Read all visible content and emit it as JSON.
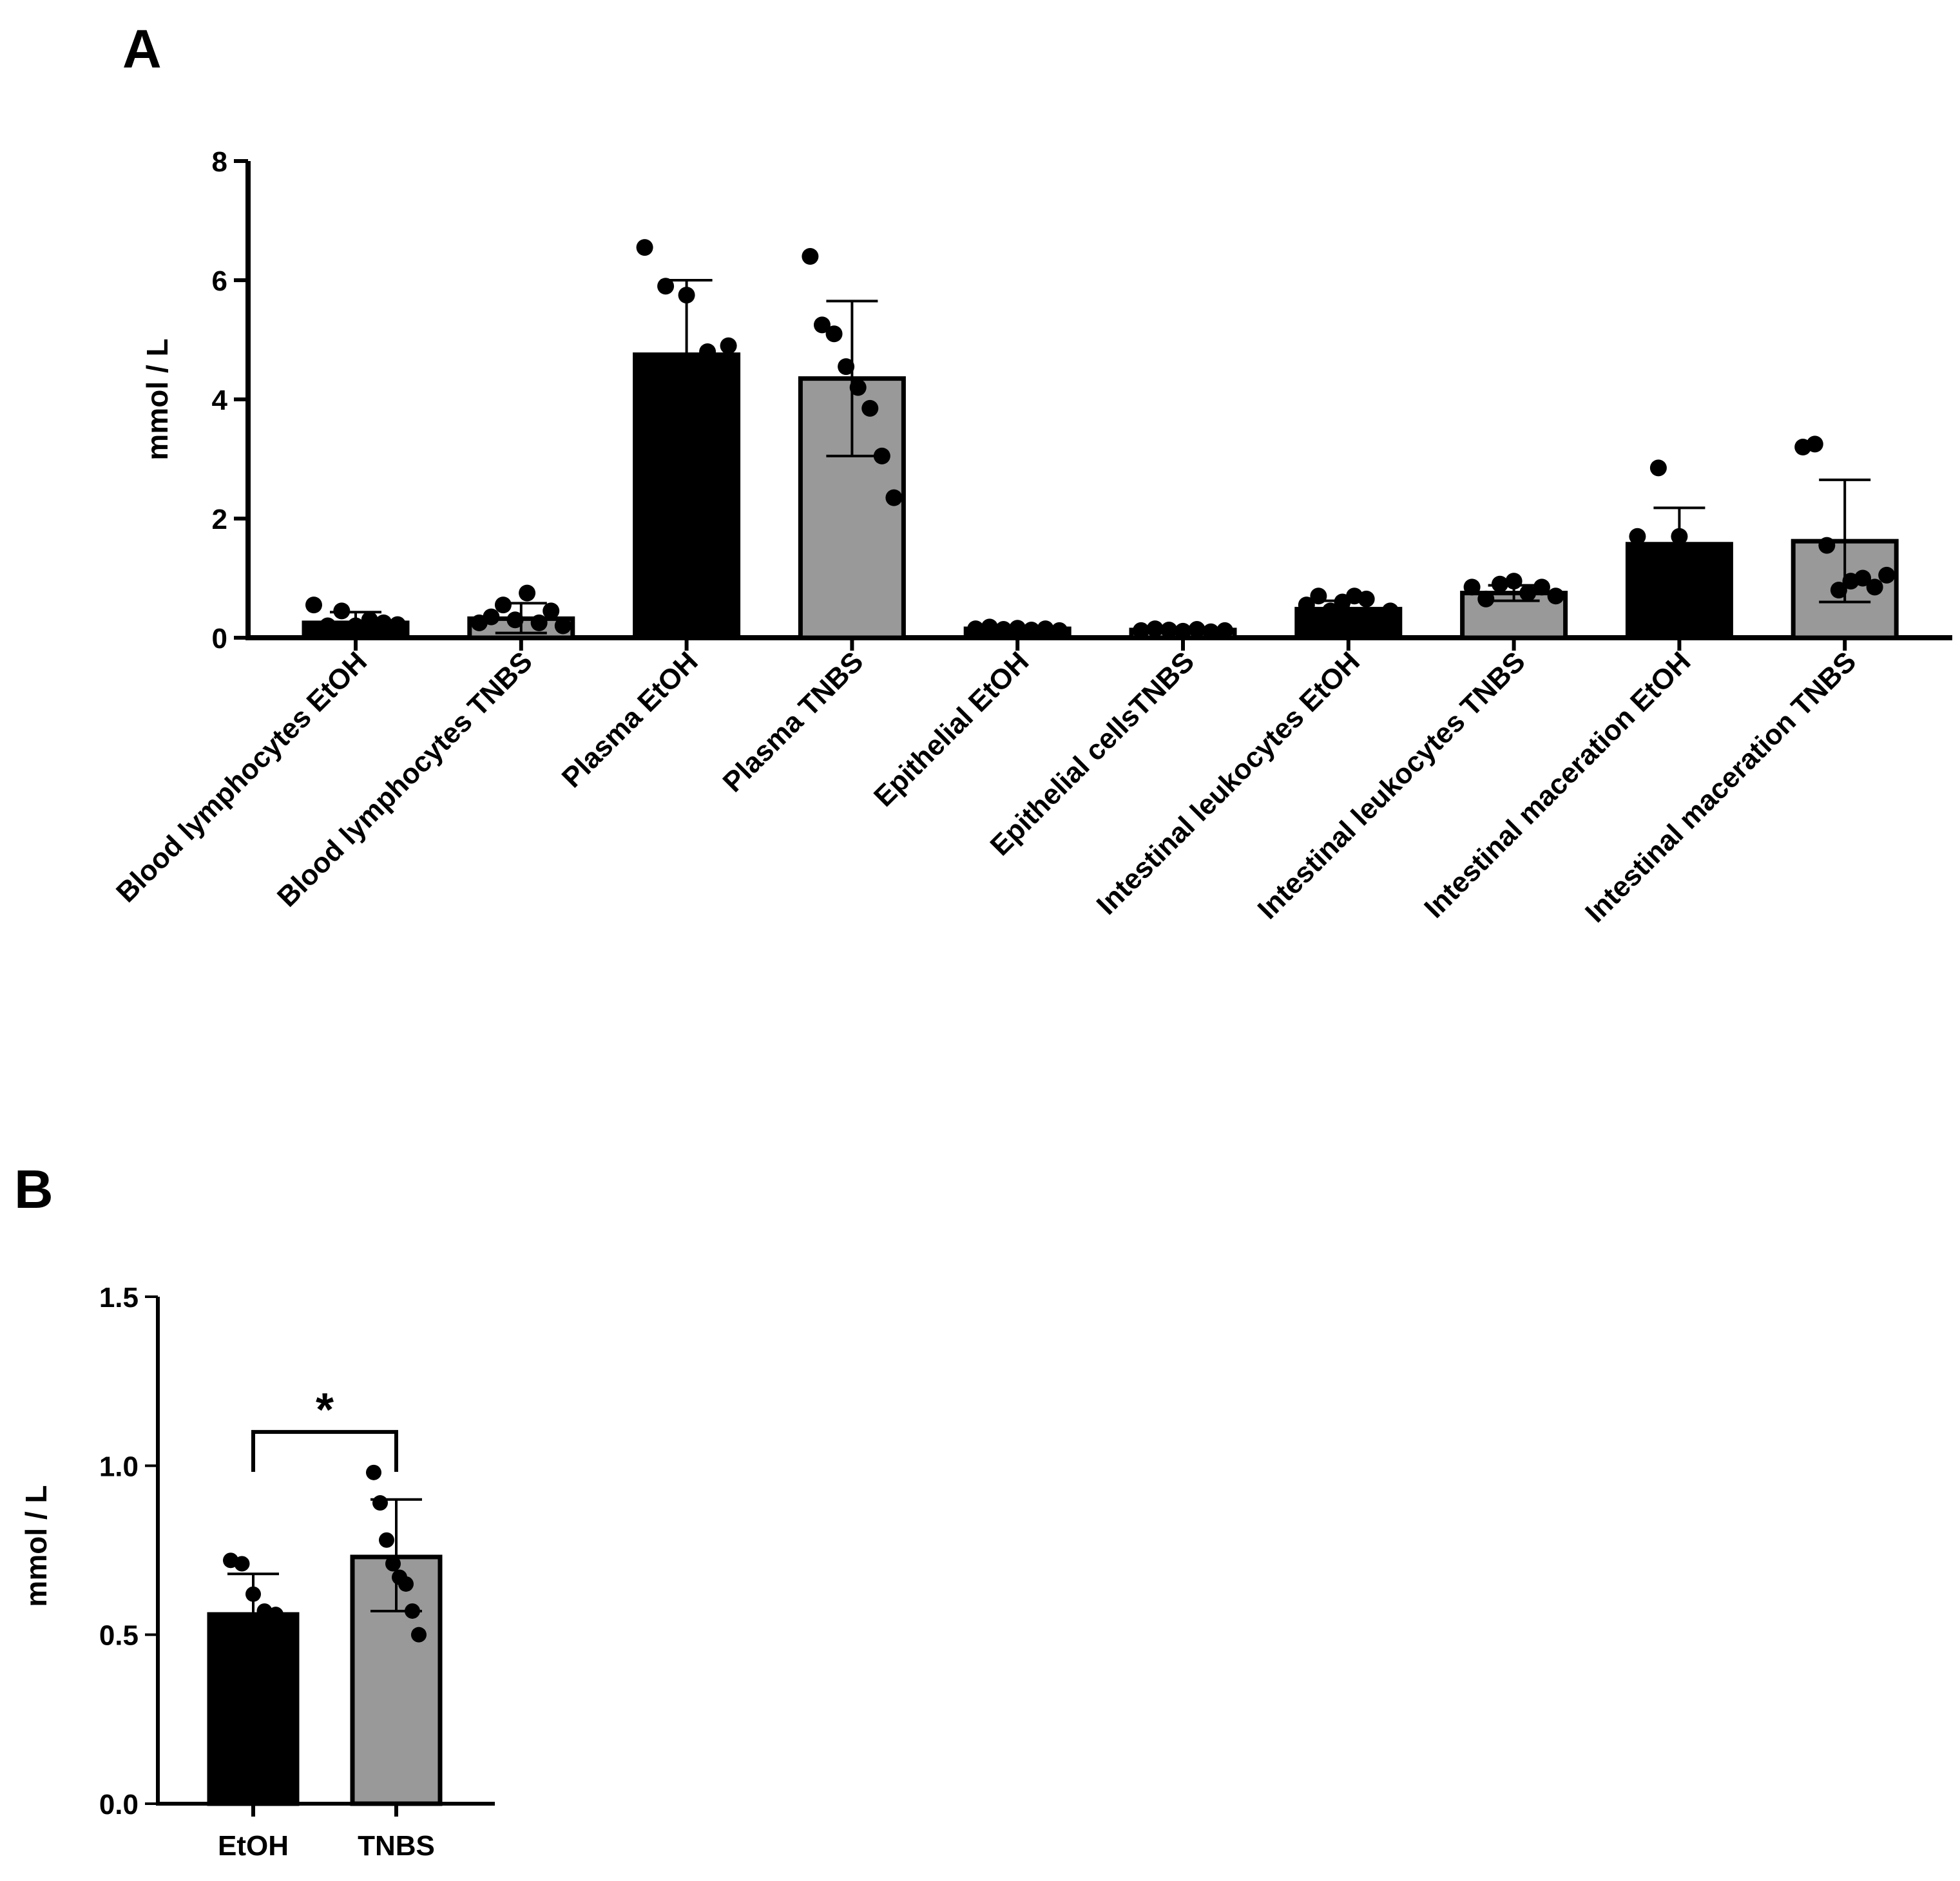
{
  "colors": {
    "etoh": "#000000",
    "tnbs": "#999999",
    "points": "#000000",
    "axis": "#000000"
  },
  "chart_data": [
    {
      "id": "A",
      "type": "bar",
      "panel_label": "A",
      "ylabel": "mmol / L",
      "ylim": [
        0,
        8
      ],
      "yticks": [
        "0",
        "2",
        "4",
        "6",
        "8"
      ],
      "categories": [
        "Blood lymphocytes EtOH",
        "Blood lymphocytes TNBS",
        "Plasma EtOH",
        "Plasma TNBS",
        "Epithelial EtOH",
        "Epithelial cellsTNBS",
        "Intestinal leukocytes EtOH",
        "Intestinal leukocytes TNBS",
        "Intestinal maceration EtOH",
        "Intestinal maceration TNBS"
      ],
      "groups": [
        "EtOH",
        "TNBS",
        "EtOH",
        "TNBS",
        "EtOH",
        "TNBS",
        "EtOH",
        "TNBS",
        "EtOH",
        "TNBS"
      ],
      "values": [
        0.25,
        0.32,
        4.75,
        4.35,
        0.15,
        0.13,
        0.48,
        0.75,
        1.57,
        1.62
      ],
      "error_upper": [
        0.43,
        0.58,
        6.0,
        5.65,
        0.19,
        0.17,
        0.62,
        0.88,
        2.18,
        2.65
      ],
      "error_lower": [
        0.07,
        0.08,
        4.75,
        3.05,
        0.11,
        0.09,
        0.35,
        0.62,
        1.57,
        0.6
      ],
      "points": [
        [
          0.55,
          0.2,
          0.45,
          0.2,
          0.3,
          0.25,
          0.22
        ],
        [
          0.25,
          0.35,
          0.55,
          0.3,
          0.75,
          0.25,
          0.45,
          0.2
        ],
        [
          6.55,
          5.9,
          5.75,
          4.8,
          4.9
        ],
        [
          6.4,
          5.25,
          5.1,
          4.55,
          4.2,
          3.85,
          3.05,
          2.35
        ],
        [
          0.15,
          0.18,
          0.14,
          0.16,
          0.13,
          0.15,
          0.12
        ],
        [
          0.12,
          0.15,
          0.13,
          0.11,
          0.14,
          0.1,
          0.12
        ],
        [
          0.55,
          0.7,
          0.45,
          0.6,
          0.7,
          0.65,
          0.35,
          0.45
        ],
        [
          0.85,
          0.65,
          0.9,
          0.95,
          0.75,
          0.85,
          0.7
        ],
        [
          1.7,
          2.85,
          1.7,
          1.25,
          1.45
        ],
        [
          3.2,
          3.25,
          1.55,
          0.8,
          0.95,
          1.0,
          0.85,
          1.05
        ]
      ]
    },
    {
      "id": "B",
      "type": "bar",
      "panel_label": "B",
      "ylabel": "mmol / L",
      "ylim": [
        0,
        1.5
      ],
      "yticks": [
        "0.0",
        "0.5",
        "1.0",
        "1.5"
      ],
      "categories": [
        "EtOH",
        "TNBS"
      ],
      "groups": [
        "EtOH",
        "TNBS"
      ],
      "values": [
        0.56,
        0.73
      ],
      "error_upper": [
        0.68,
        0.9
      ],
      "error_lower": [
        0.56,
        0.57
      ],
      "points": [
        [
          0.72,
          0.71,
          0.62,
          0.57,
          0.56
        ],
        [
          0.98,
          0.89,
          0.78,
          0.71,
          0.67,
          0.65,
          0.57,
          0.5
        ]
      ],
      "significance": {
        "label": "*",
        "between": [
          0,
          1
        ],
        "y": 1.1
      }
    }
  ]
}
